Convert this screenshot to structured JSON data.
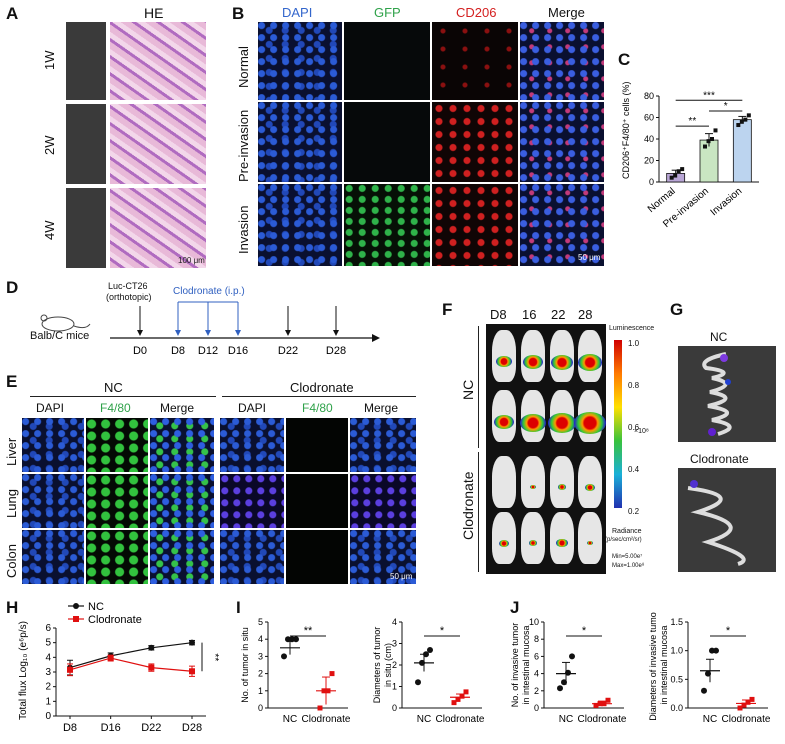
{
  "panels": {
    "A": {
      "letter": "A",
      "title": "HE",
      "rows": [
        "1W",
        "2W",
        "4W"
      ],
      "scale": "100 μm"
    },
    "B": {
      "letter": "B",
      "cols": [
        "DAPI",
        "GFP",
        "CD206",
        "Merge"
      ],
      "rows": [
        "Normal",
        "Pre-invasion",
        "Invasion"
      ],
      "scale": "50 μm",
      "col_colors": [
        "#3366cc",
        "#2fa24a",
        "#d42020",
        "#111111"
      ]
    },
    "C": {
      "letter": "C",
      "ylabel": "CD206⁺F4/80⁺ cells (%)"
    },
    "D": {
      "letter": "D",
      "mice": "Balb/C mice",
      "luc": "Luc-CT26",
      "ortho": "(orthotopic)",
      "clod": "Clodronate (i.p.)",
      "days": [
        "D0",
        "D8",
        "D12",
        "D16",
        "D22",
        "D28"
      ]
    },
    "E": {
      "letter": "E",
      "group_nc": "NC",
      "group_cl": "Clodronate",
      "cols": [
        "DAPI",
        "F4/80",
        "Merge",
        "DAPI",
        "F4/80",
        "Merge"
      ],
      "rows": [
        "Liver",
        "Lung",
        "Colon"
      ],
      "scale": "50 μm"
    },
    "F": {
      "letter": "F",
      "days": [
        "D8",
        "16",
        "22",
        "28"
      ],
      "groups": [
        "NC",
        "Clodronate"
      ],
      "lum": "Luminescence",
      "unit": "×10⁸",
      "radiance": "Radiance",
      "radiance_unit": "(p/sec/cm²/sr)",
      "min": "Min=5.00e⁷",
      "max": "Max=1.00e⁸",
      "ticks": [
        "1.0",
        "0.8",
        "0.6",
        "0.4",
        "0.2"
      ]
    },
    "G": {
      "letter": "G",
      "nc": "NC",
      "cl": "Clodronate"
    },
    "H": {
      "letter": "H"
    },
    "I": {
      "letter": "I"
    },
    "J": {
      "letter": "J"
    }
  },
  "chart_data": [
    {
      "id": "C",
      "type": "bar",
      "categories": [
        "Normal",
        "Pre-invasion",
        "Invasion"
      ],
      "values": [
        8,
        39,
        58
      ],
      "errors": [
        3,
        6,
        3
      ],
      "points": [
        [
          4,
          6,
          10,
          12
        ],
        [
          33,
          38,
          40,
          48
        ],
        [
          53,
          56,
          58,
          62
        ]
      ],
      "ylabel": "CD206⁺F4/80⁺ cells (%)",
      "ylim": [
        0,
        80
      ],
      "yticks": [
        0,
        20,
        40,
        60,
        80
      ],
      "colors": [
        "#b9a6d6",
        "#c9e6c2",
        "#bcd4ef"
      ],
      "significance": [
        {
          "pair": [
            0,
            1
          ],
          "label": "**"
        },
        {
          "pair": [
            1,
            2
          ],
          "label": "*"
        },
        {
          "pair": [
            0,
            2
          ],
          "label": "***"
        }
      ]
    },
    {
      "id": "H",
      "type": "line",
      "x": [
        "D8",
        "D16",
        "D22",
        "D28"
      ],
      "series": [
        {
          "name": "NC",
          "values": [
            3.3,
            4.1,
            4.65,
            5.0
          ],
          "errors": [
            0.5,
            0.2,
            0.15,
            0.15
          ],
          "color": "#111111"
        },
        {
          "name": "Clodronate",
          "values": [
            3.15,
            3.95,
            3.3,
            3.05
          ],
          "errors": [
            0.4,
            0.2,
            0.25,
            0.35
          ],
          "color": "#e01010"
        }
      ],
      "ylabel": "Total flux Log₁₀ (e⁶p/s)",
      "ylim": [
        0,
        6
      ],
      "yticks": [
        0,
        1,
        2,
        3,
        4,
        5,
        6
      ],
      "significance": "**"
    },
    {
      "id": "I1",
      "type": "scatter",
      "categories": [
        "NC",
        "Clodronate"
      ],
      "points": [
        [
          3,
          4,
          4,
          4
        ],
        [
          0,
          1,
          1,
          2
        ]
      ],
      "means": [
        3.5,
        1.0
      ],
      "errors": [
        0.4,
        0.8
      ],
      "ylabel": "No. of tumor in situ",
      "ylim": [
        0,
        5
      ],
      "yticks": [
        0,
        1,
        2,
        3,
        4,
        5
      ],
      "significance": "**"
    },
    {
      "id": "I2",
      "type": "scatter",
      "categories": [
        "NC",
        "Clodronate"
      ],
      "points": [
        [
          1.2,
          2.1,
          2.5,
          2.7
        ],
        [
          0.25,
          0.4,
          0.55,
          0.75
        ]
      ],
      "means": [
        2.1,
        0.5
      ],
      "errors": [
        0.4,
        0.15
      ],
      "ylabel": "Diameters of tumor in situ (cm)",
      "ylim": [
        0,
        4
      ],
      "yticks": [
        0,
        1,
        2,
        3,
        4
      ],
      "significance": "*"
    },
    {
      "id": "J1",
      "type": "scatter",
      "categories": [
        "NC",
        "Clodronate"
      ],
      "points": [
        [
          2.3,
          3.0,
          4.1,
          6.0
        ],
        [
          0.3,
          0.5,
          0.5,
          0.9
        ]
      ],
      "means": [
        4.0,
        0.5
      ],
      "errors": [
        1.3,
        0.3
      ],
      "ylabel": "No. of invasive tumor in intestinal mucosa",
      "ylim": [
        0,
        10
      ],
      "yticks": [
        0,
        2,
        4,
        6,
        8,
        10
      ],
      "significance": "*"
    },
    {
      "id": "J2",
      "type": "scatter",
      "categories": [
        "NC",
        "Clodronate"
      ],
      "points": [
        [
          0.3,
          0.6,
          1.0,
          1.0
        ],
        [
          0.0,
          0.05,
          0.1,
          0.15
        ]
      ],
      "means": [
        0.65,
        0.08
      ],
      "errors": [
        0.2,
        0.06
      ],
      "ylabel": "Diameters of invasive tumor in intestinal mucosa",
      "ylim": [
        0,
        1.5
      ],
      "yticks": [
        0.0,
        0.5,
        1.0,
        1.5
      ],
      "significance": "*"
    }
  ]
}
